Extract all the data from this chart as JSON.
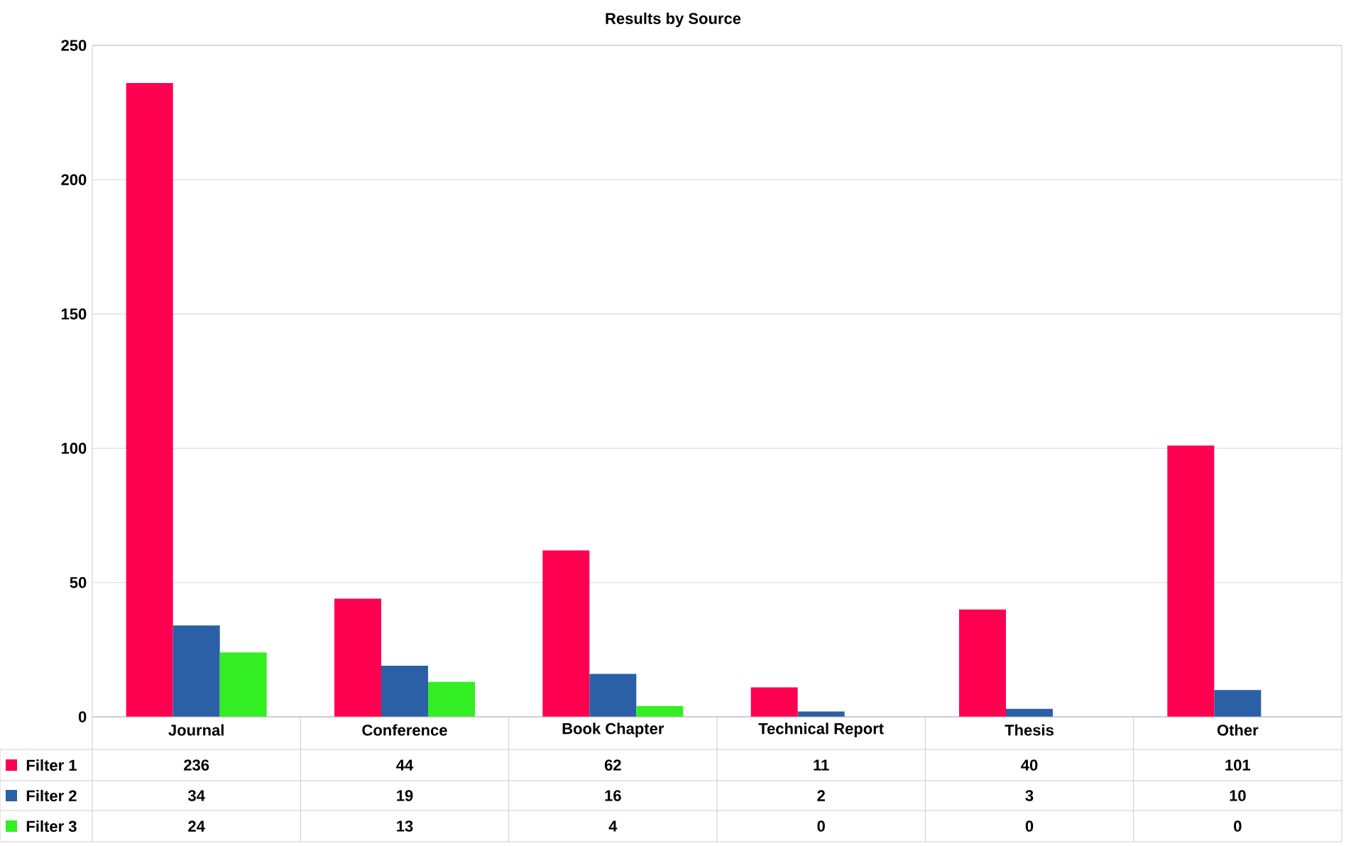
{
  "chart_data": {
    "type": "bar",
    "title": "Results by Source",
    "categories": [
      "Journal",
      "Conference",
      "Book Chapter",
      "Technical Report",
      "Thesis",
      "Other"
    ],
    "series": [
      {
        "name": "Filter 1",
        "color": "#ff0050",
        "values": [
          236,
          44,
          62,
          11,
          40,
          101
        ]
      },
      {
        "name": "Filter 2",
        "color": "#2b5fa6",
        "values": [
          34,
          19,
          16,
          2,
          3,
          10
        ]
      },
      {
        "name": "Filter 3",
        "color": "#33ee22",
        "values": [
          24,
          13,
          4,
          0,
          0,
          0
        ]
      }
    ],
    "ylim": [
      0,
      250
    ],
    "yticks": [
      0,
      50,
      100,
      150,
      200,
      250
    ],
    "grid": "y",
    "legend": "bottom left",
    "data_labels": true
  }
}
